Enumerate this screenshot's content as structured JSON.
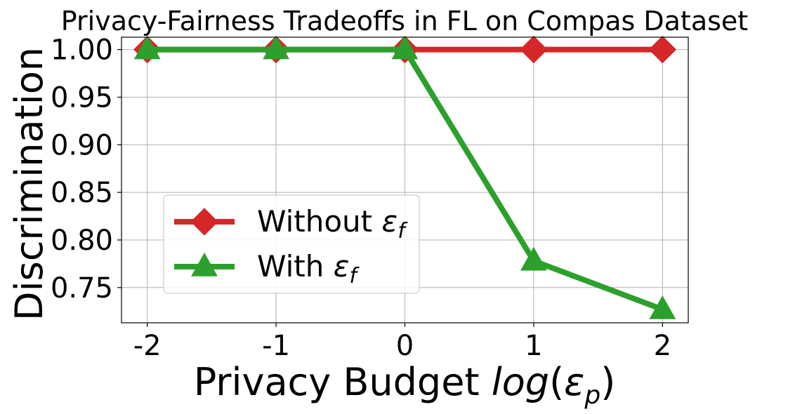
{
  "chart_data": {
    "type": "line",
    "title": "Privacy-Fairness Tradeoffs in FL on Compas Dataset",
    "xlabel": "Privacy Budget log(εp)",
    "xlabel_parts": {
      "prefix": "Privacy Budget ",
      "func": "log",
      "open": "(",
      "symbol": "ε",
      "sub": "p",
      "close": ")"
    },
    "ylabel": "Discrimination",
    "x": [
      -2,
      -1,
      0,
      1,
      2
    ],
    "x_tick_labels": [
      "-2",
      "-1",
      "0",
      "1",
      "2"
    ],
    "xlim": [
      -2.2,
      2.2
    ],
    "y_ticks": [
      0.75,
      0.8,
      0.85,
      0.9,
      0.95,
      1.0
    ],
    "y_tick_labels": [
      "0.75",
      "0.80",
      "0.85",
      "0.90",
      "0.95",
      "1.00"
    ],
    "ylim": [
      0.713,
      1.013
    ],
    "grid": true,
    "legend_position": "lower-left",
    "series": [
      {
        "name": "Without εf",
        "name_parts": {
          "prefix": "Without ",
          "symbol": "ε",
          "sub": "f"
        },
        "values": [
          1.0,
          1.0,
          1.0,
          1.0,
          1.0
        ],
        "color": "#d62728",
        "marker": "diamond"
      },
      {
        "name": "With εf",
        "name_parts": {
          "prefix": "With ",
          "symbol": "ε",
          "sub": "f"
        },
        "values": [
          1.0,
          1.0,
          1.0,
          0.778,
          0.727
        ],
        "color": "#2ca02c",
        "marker": "triangle"
      }
    ]
  }
}
